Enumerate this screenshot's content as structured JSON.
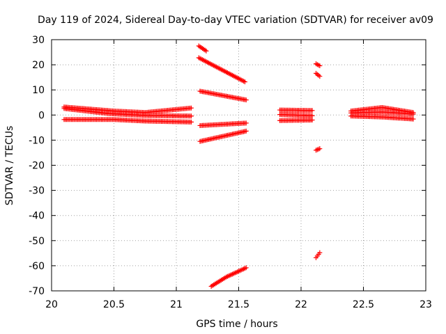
{
  "chart_data": {
    "type": "scatter",
    "title": "Day 119 of 2024, Sidereal Day-to-day VTEC variation (SDTVAR) for receiver av09",
    "xlabel": "GPS time / hours",
    "ylabel": "SDTVAR / TECUs",
    "xlim": [
      20,
      23
    ],
    "ylim": [
      -70,
      30
    ],
    "xticks": [
      {
        "value": 20,
        "label": "20"
      },
      {
        "value": 20.5,
        "label": "20.5"
      },
      {
        "value": 21,
        "label": "21"
      },
      {
        "value": 21.5,
        "label": "21.5"
      },
      {
        "value": 22,
        "label": "22"
      },
      {
        "value": 22.5,
        "label": "22.5"
      },
      {
        "value": 23,
        "label": "23"
      }
    ],
    "yticks": [
      {
        "value": 30,
        "label": "30"
      },
      {
        "value": 20,
        "label": "20"
      },
      {
        "value": 10,
        "label": "10"
      },
      {
        "value": 0,
        "label": "0"
      },
      {
        "value": -10,
        "label": "-10"
      },
      {
        "value": -20,
        "label": "-20"
      },
      {
        "value": -30,
        "label": "-30"
      },
      {
        "value": -40,
        "label": "-40"
      },
      {
        "value": -50,
        "label": "-50"
      },
      {
        "value": -60,
        "label": "-60"
      },
      {
        "value": -70,
        "label": "-70"
      }
    ],
    "grid": true,
    "marker": "+",
    "marker_color": "#ff0000",
    "segments": [
      {
        "name": "prn-a-upper",
        "x_start": 20.1,
        "x_end": 21.12,
        "y_points": [
          [
            20.1,
            3.2
          ],
          [
            20.5,
            1.6
          ],
          [
            20.75,
            1.0
          ],
          [
            21.12,
            2.8
          ]
        ],
        "step": 0.01
      },
      {
        "name": "prn-b-lower",
        "x_start": 20.1,
        "x_end": 21.12,
        "y_points": [
          [
            20.1,
            -1.8
          ],
          [
            20.5,
            -1.8
          ],
          [
            20.75,
            -2.4
          ],
          [
            21.12,
            -2.8
          ]
        ],
        "step": 0.01
      },
      {
        "name": "prn-c-mid",
        "x_start": 20.1,
        "x_end": 21.12,
        "y_points": [
          [
            20.1,
            2.6
          ],
          [
            20.45,
            0.6
          ],
          [
            20.75,
            -0.2
          ],
          [
            21.12,
            -0.4
          ]
        ],
        "step": 0.01
      },
      {
        "name": "prn-d-falling",
        "x_start": 21.18,
        "x_end": 21.55,
        "y_points": [
          [
            21.18,
            22.8
          ],
          [
            21.55,
            13.2
          ]
        ],
        "step": 0.01
      },
      {
        "name": "prn-e-top",
        "x_start": 21.18,
        "x_end": 21.24,
        "y_points": [
          [
            21.18,
            27.5
          ],
          [
            21.24,
            25.5
          ]
        ],
        "step": 0.01
      },
      {
        "name": "prn-f-positive",
        "x_start": 21.19,
        "x_end": 21.56,
        "y_points": [
          [
            21.19,
            9.5
          ],
          [
            21.56,
            6.0
          ]
        ],
        "step": 0.01
      },
      {
        "name": "prn-g-negative",
        "x_start": 21.19,
        "x_end": 21.56,
        "y_points": [
          [
            21.19,
            -4.2
          ],
          [
            21.56,
            -3.2
          ]
        ],
        "step": 0.01
      },
      {
        "name": "prn-h-rising",
        "x_start": 21.19,
        "x_end": 21.56,
        "y_points": [
          [
            21.19,
            -10.5
          ],
          [
            21.56,
            -6.4
          ]
        ],
        "step": 0.01
      },
      {
        "name": "prn-i-deep",
        "x_start": 21.28,
        "x_end": 21.56,
        "y_points": [
          [
            21.28,
            -68.2
          ],
          [
            21.4,
            -64.5
          ],
          [
            21.56,
            -60.8
          ]
        ],
        "step": 0.01
      },
      {
        "name": "prn-j-22h-upper",
        "x_start": 21.83,
        "x_end": 22.09,
        "y_points": [
          [
            21.83,
            2.0
          ],
          [
            22.09,
            1.8
          ]
        ],
        "step": 0.01
      },
      {
        "name": "prn-k-22h-lower",
        "x_start": 21.83,
        "x_end": 22.09,
        "y_points": [
          [
            21.83,
            -2.2
          ],
          [
            22.09,
            -2.0
          ]
        ],
        "step": 0.01
      },
      {
        "name": "prn-l-22h-mid",
        "x_start": 21.83,
        "x_end": 22.09,
        "y_points": [
          [
            21.83,
            0.2
          ],
          [
            22.09,
            -0.3
          ]
        ],
        "step": 0.01
      },
      {
        "name": "prn-m-22h-top",
        "x_start": 22.12,
        "x_end": 22.15,
        "y_points": [
          [
            22.12,
            20.4
          ],
          [
            22.15,
            19.6
          ]
        ],
        "step": 0.01
      },
      {
        "name": "prn-n-22h-high",
        "x_start": 22.12,
        "x_end": 22.15,
        "y_points": [
          [
            22.12,
            16.6
          ],
          [
            22.15,
            15.4
          ]
        ],
        "step": 0.01
      },
      {
        "name": "prn-o-22h-neg",
        "x_start": 22.12,
        "x_end": 22.15,
        "y_points": [
          [
            22.12,
            -14.0
          ],
          [
            22.15,
            -13.4
          ]
        ],
        "step": 0.01
      },
      {
        "name": "prn-p-22h-deep",
        "x_start": 22.12,
        "x_end": 22.15,
        "y_points": [
          [
            22.12,
            -56.8
          ],
          [
            22.15,
            -54.8
          ]
        ],
        "step": 0.01
      },
      {
        "name": "prn-q-late-upper",
        "x_start": 22.4,
        "x_end": 22.9,
        "y_points": [
          [
            22.4,
            1.6
          ],
          [
            22.65,
            3.0
          ],
          [
            22.9,
            1.0
          ]
        ],
        "step": 0.01
      },
      {
        "name": "prn-r-late-lower",
        "x_start": 22.4,
        "x_end": 22.9,
        "y_points": [
          [
            22.4,
            -0.4
          ],
          [
            22.65,
            -0.8
          ],
          [
            22.9,
            -1.6
          ]
        ],
        "step": 0.01
      },
      {
        "name": "prn-s-late-mid",
        "x_start": 22.4,
        "x_end": 22.9,
        "y_points": [
          [
            22.4,
            0.8
          ],
          [
            22.65,
            1.2
          ],
          [
            22.9,
            0.4
          ]
        ],
        "step": 0.01
      }
    ]
  }
}
